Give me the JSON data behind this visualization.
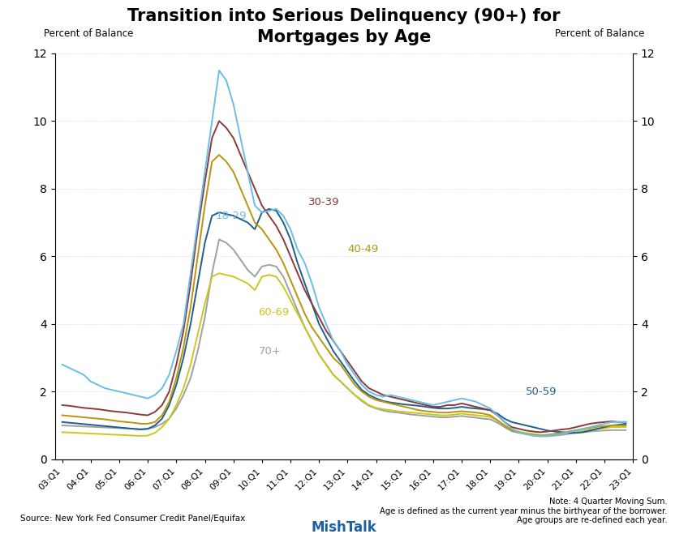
{
  "title_line1": "Transition into Serious Delinquency (90+) for",
  "title_line2": "Mortgages by Age",
  "ylabel_left": "Percent of Balance",
  "ylabel_right": "Percent of Balance",
  "source": "Source: New York Fed Consumer Credit Panel/Equifax",
  "note": "Note: 4 Quarter Moving Sum.\nAge is defined as the current year minus the birthyear of the borrower.\nAge groups are re-defined each year.",
  "brand": "MishTalk",
  "ylim": [
    0,
    12
  ],
  "yticks": [
    0,
    2,
    4,
    6,
    8,
    10,
    12
  ],
  "x_labels": [
    "03:Q1",
    "04:Q1",
    "05:Q1",
    "06:Q1",
    "07:Q1",
    "08:Q1",
    "09:Q1",
    "10:Q1",
    "11:Q1",
    "12:Q1",
    "13:Q1",
    "14:Q1",
    "15:Q1",
    "16:Q1",
    "17:Q1",
    "18:Q1",
    "19:Q1",
    "20:Q1",
    "21:Q1",
    "22:Q1",
    "23:Q1"
  ],
  "x_tick_positions": [
    0,
    4,
    8,
    12,
    16,
    20,
    24,
    28,
    32,
    36,
    40,
    44,
    48,
    52,
    56,
    60,
    64,
    68,
    72,
    76,
    80
  ],
  "series": {
    "18-29": {
      "color": "#6BBDE8",
      "data": [
        2.8,
        2.7,
        2.6,
        2.5,
        2.3,
        2.2,
        2.1,
        2.05,
        2.0,
        1.95,
        1.9,
        1.85,
        1.8,
        1.9,
        2.1,
        2.5,
        3.2,
        4.0,
        5.5,
        7.0,
        8.5,
        10.0,
        11.5,
        11.2,
        10.5,
        9.5,
        8.5,
        7.5,
        7.3,
        7.35,
        7.4,
        7.2,
        6.8,
        6.2,
        5.8,
        5.2,
        4.5,
        4.0,
        3.5,
        3.2,
        2.8,
        2.5,
        2.2,
        2.0,
        1.9,
        1.85,
        1.9,
        1.85,
        1.8,
        1.75,
        1.7,
        1.65,
        1.6,
        1.65,
        1.7,
        1.75,
        1.8,
        1.75,
        1.7,
        1.6,
        1.5,
        1.3,
        1.1,
        0.9,
        0.8,
        0.75,
        0.7,
        0.68,
        0.7,
        0.72,
        0.75,
        0.8,
        0.85,
        0.9,
        0.95,
        1.0,
        1.05,
        1.1,
        1.1,
        1.1
      ]
    },
    "30-39": {
      "color": "#8B3A3A",
      "data": [
        1.6,
        1.58,
        1.55,
        1.52,
        1.5,
        1.48,
        1.45,
        1.42,
        1.4,
        1.38,
        1.35,
        1.32,
        1.3,
        1.4,
        1.6,
        2.0,
        2.8,
        3.8,
        5.2,
        6.8,
        8.2,
        9.5,
        10.0,
        9.8,
        9.5,
        9.0,
        8.5,
        8.0,
        7.5,
        7.2,
        6.9,
        6.5,
        6.0,
        5.5,
        5.0,
        4.6,
        4.2,
        3.8,
        3.5,
        3.2,
        2.9,
        2.6,
        2.3,
        2.1,
        2.0,
        1.9,
        1.85,
        1.8,
        1.75,
        1.7,
        1.65,
        1.6,
        1.55,
        1.55,
        1.6,
        1.6,
        1.65,
        1.6,
        1.55,
        1.5,
        1.45,
        1.3,
        1.1,
        0.95,
        0.9,
        0.85,
        0.82,
        0.8,
        0.82,
        0.85,
        0.88,
        0.9,
        0.95,
        1.0,
        1.05,
        1.08,
        1.1,
        1.12,
        1.1,
        1.1
      ]
    },
    "40-49": {
      "color": "#B8960C",
      "data": [
        1.3,
        1.28,
        1.26,
        1.24,
        1.22,
        1.2,
        1.18,
        1.15,
        1.12,
        1.1,
        1.08,
        1.05,
        1.05,
        1.1,
        1.3,
        1.7,
        2.4,
        3.3,
        4.5,
        6.0,
        7.5,
        8.8,
        9.0,
        8.8,
        8.5,
        8.0,
        7.5,
        7.0,
        6.8,
        6.5,
        6.2,
        5.8,
        5.3,
        4.8,
        4.3,
        3.9,
        3.6,
        3.3,
        3.0,
        2.8,
        2.5,
        2.2,
        2.0,
        1.85,
        1.75,
        1.7,
        1.65,
        1.6,
        1.55,
        1.5,
        1.45,
        1.42,
        1.4,
        1.38,
        1.38,
        1.4,
        1.42,
        1.4,
        1.38,
        1.35,
        1.3,
        1.15,
        1.0,
        0.85,
        0.8,
        0.75,
        0.72,
        0.7,
        0.72,
        0.75,
        0.78,
        0.82,
        0.86,
        0.9,
        0.93,
        0.96,
        0.98,
        1.0,
        1.0,
        1.0
      ]
    },
    "50-59": {
      "color": "#1F5F8B",
      "data": [
        1.1,
        1.08,
        1.06,
        1.04,
        1.02,
        1.0,
        0.98,
        0.96,
        0.94,
        0.92,
        0.9,
        0.88,
        0.9,
        1.0,
        1.2,
        1.6,
        2.2,
        3.0,
        4.0,
        5.2,
        6.4,
        7.2,
        7.3,
        7.25,
        7.2,
        7.1,
        7.0,
        6.8,
        7.3,
        7.4,
        7.35,
        7.0,
        6.5,
        5.8,
        5.2,
        4.6,
        4.0,
        3.6,
        3.2,
        2.9,
        2.6,
        2.3,
        2.05,
        1.9,
        1.8,
        1.72,
        1.68,
        1.65,
        1.62,
        1.6,
        1.58,
        1.55,
        1.52,
        1.5,
        1.5,
        1.52,
        1.55,
        1.52,
        1.5,
        1.48,
        1.45,
        1.35,
        1.2,
        1.1,
        1.05,
        1.0,
        0.95,
        0.9,
        0.85,
        0.82,
        0.8,
        0.78,
        0.78,
        0.8,
        0.85,
        0.9,
        0.95,
        1.0,
        1.02,
        1.05
      ]
    },
    "60-69": {
      "color": "#C8C820",
      "data": [
        0.8,
        0.79,
        0.78,
        0.77,
        0.76,
        0.75,
        0.74,
        0.73,
        0.72,
        0.71,
        0.7,
        0.69,
        0.7,
        0.78,
        0.95,
        1.2,
        1.6,
        2.1,
        2.8,
        3.7,
        4.6,
        5.4,
        5.5,
        5.45,
        5.4,
        5.3,
        5.2,
        5.0,
        5.4,
        5.45,
        5.4,
        5.1,
        4.7,
        4.3,
        3.9,
        3.5,
        3.1,
        2.8,
        2.5,
        2.3,
        2.1,
        1.9,
        1.75,
        1.6,
        1.52,
        1.48,
        1.45,
        1.42,
        1.4,
        1.38,
        1.36,
        1.34,
        1.32,
        1.3,
        1.3,
        1.32,
        1.35,
        1.32,
        1.3,
        1.28,
        1.25,
        1.15,
        1.0,
        0.88,
        0.82,
        0.78,
        0.75,
        0.72,
        0.72,
        0.74,
        0.76,
        0.79,
        0.82,
        0.85,
        0.88,
        0.9,
        0.92,
        0.95,
        0.95,
        0.95
      ]
    },
    "70+": {
      "color": "#A0A0A0",
      "data": [
        1.0,
        0.99,
        0.98,
        0.97,
        0.96,
        0.95,
        0.94,
        0.93,
        0.92,
        0.91,
        0.9,
        0.89,
        0.9,
        0.95,
        1.05,
        1.2,
        1.5,
        1.9,
        2.4,
        3.2,
        4.2,
        5.5,
        6.5,
        6.4,
        6.2,
        5.9,
        5.6,
        5.4,
        5.7,
        5.75,
        5.7,
        5.4,
        4.9,
        4.4,
        3.9,
        3.5,
        3.1,
        2.8,
        2.5,
        2.3,
        2.1,
        1.9,
        1.72,
        1.58,
        1.5,
        1.44,
        1.4,
        1.38,
        1.35,
        1.32,
        1.3,
        1.28,
        1.26,
        1.24,
        1.24,
        1.26,
        1.28,
        1.25,
        1.23,
        1.2,
        1.18,
        1.08,
        0.95,
        0.83,
        0.78,
        0.74,
        0.7,
        0.68,
        0.68,
        0.7,
        0.72,
        0.75,
        0.78,
        0.8,
        0.82,
        0.84,
        0.85,
        0.86,
        0.86,
        0.86
      ]
    }
  },
  "label_configs": {
    "18-29": {
      "xi": 21.5,
      "yi": 7.2,
      "color": "#6BBDE8",
      "ha": "left"
    },
    "30-39": {
      "xi": 34.5,
      "yi": 7.6,
      "color": "#8B3A3A",
      "ha": "left"
    },
    "40-49": {
      "xi": 40.0,
      "yi": 6.2,
      "color": "#B8960C",
      "ha": "left"
    },
    "50-59": {
      "xi": 65.0,
      "yi": 2.0,
      "color": "#1F5F8B",
      "ha": "left"
    },
    "60-69": {
      "xi": 27.5,
      "yi": 4.35,
      "color": "#C8C820",
      "ha": "left"
    },
    "70+": {
      "xi": 27.5,
      "yi": 3.2,
      "color": "#A0A0A0",
      "ha": "left"
    }
  }
}
